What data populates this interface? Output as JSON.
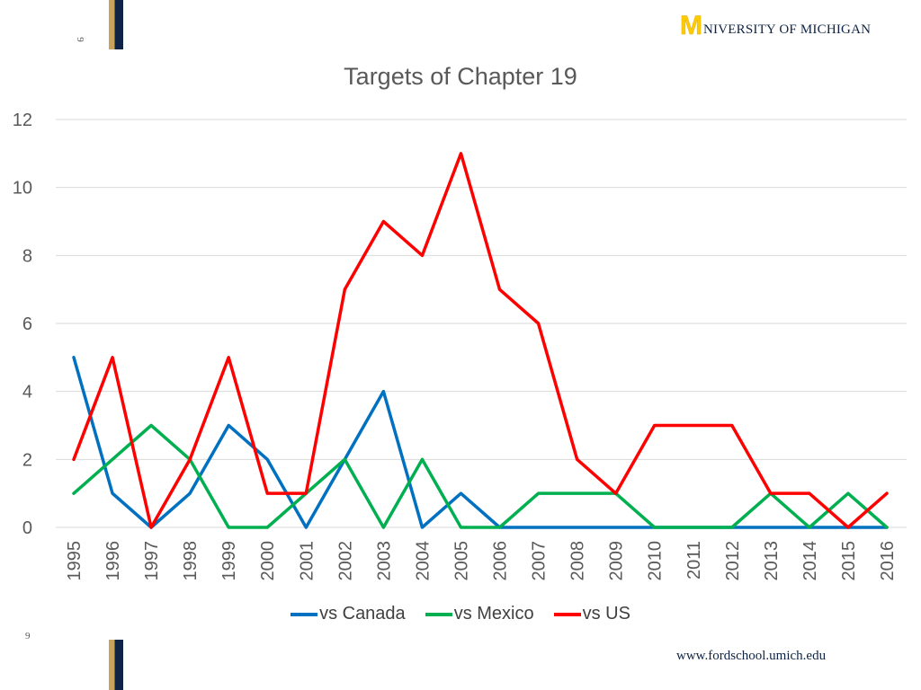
{
  "header": {
    "slide_number": "9",
    "logo_text": "NIVERSITY OF MICHIGAN",
    "logo_letter": "M"
  },
  "footer": {
    "url": "www.fordschool.umich.edu",
    "slide_number": "9"
  },
  "colors": {
    "canada": "#0070c0",
    "mexico": "#00b050",
    "us": "#ff0000",
    "grid": "#d9d9d9",
    "axis_text": "#595959",
    "brand_maize": "#ffcb05",
    "brand_blue": "#0f2444"
  },
  "chart_data": {
    "type": "line",
    "title": "Targets of Chapter 19",
    "xlabel": "",
    "ylabel": "",
    "ylim": [
      0,
      12
    ],
    "yticks": [
      0,
      2,
      4,
      6,
      8,
      10,
      12
    ],
    "grid": true,
    "legend_position": "bottom",
    "categories": [
      "1995",
      "1996",
      "1997",
      "1998",
      "1999",
      "2000",
      "2001",
      "2002",
      "2003",
      "2004",
      "2005",
      "2006",
      "2007",
      "2008",
      "2009",
      "2010",
      "2011",
      "2012",
      "2013",
      "2014",
      "2015",
      "2016"
    ],
    "series": [
      {
        "name": "vs Canada",
        "color": "#0070c0",
        "values": [
          5,
          1,
          0,
          1,
          3,
          2,
          0,
          2,
          4,
          0,
          1,
          0,
          0,
          0,
          0,
          0,
          0,
          0,
          0,
          0,
          0,
          0
        ]
      },
      {
        "name": "vs Mexico",
        "color": "#00b050",
        "values": [
          1,
          2,
          3,
          2,
          0,
          0,
          1,
          2,
          0,
          2,
          0,
          0,
          1,
          1,
          1,
          0,
          0,
          0,
          1,
          0,
          1,
          0
        ]
      },
      {
        "name": "vs US",
        "color": "#ff0000",
        "values": [
          2,
          5,
          0,
          2,
          5,
          1,
          1,
          7,
          9,
          8,
          11,
          7,
          6,
          2,
          1,
          3,
          3,
          3,
          1,
          1,
          0,
          1
        ]
      }
    ]
  }
}
